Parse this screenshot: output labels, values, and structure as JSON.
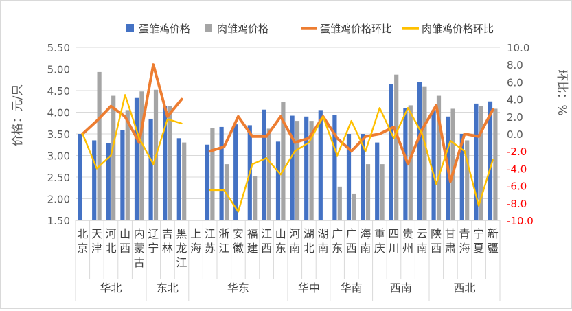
{
  "chart_data": {
    "type": "bar",
    "title": "",
    "ylabel": "价格：元/只",
    "y2label": "环比：%",
    "ylim": [
      1.5,
      5.5
    ],
    "y2lim": [
      -10.0,
      10.0
    ],
    "yticks": [
      "1.50",
      "2.00",
      "2.50",
      "3.00",
      "3.50",
      "4.00",
      "4.50",
      "5.00",
      "5.50"
    ],
    "y2ticks": [
      "-10.0",
      "-8.0",
      "-6.0",
      "-4.0",
      "-2.0",
      "0.0",
      "2.0",
      "4.0",
      "6.0",
      "8.0",
      "10.0"
    ],
    "legend_position": "top",
    "categories": [
      "北京",
      "天津",
      "河北",
      "山西",
      "内蒙古",
      "辽宁",
      "吉林",
      "黑龙江",
      "上海",
      "江苏",
      "浙江",
      "安徽",
      "福建",
      "江西",
      "山东",
      "河南",
      "湖北",
      "湖南",
      "广东",
      "广西",
      "海南",
      "重庆",
      "四川",
      "贵州",
      "云南",
      "陕西",
      "甘肃",
      "青海",
      "宁夏",
      "新疆"
    ],
    "category_lines": [
      [
        "北",
        "京"
      ],
      [
        "天",
        "津"
      ],
      [
        "河",
        "北"
      ],
      [
        "山",
        "西"
      ],
      [
        "内",
        "蒙",
        "古"
      ],
      [
        "辽",
        "宁"
      ],
      [
        "吉",
        "林"
      ],
      [
        "黑",
        "龙",
        "江"
      ],
      [
        "上",
        "海"
      ],
      [
        "江",
        "苏"
      ],
      [
        "浙",
        "江"
      ],
      [
        "安",
        "徽"
      ],
      [
        "福",
        "建"
      ],
      [
        "江",
        "西"
      ],
      [
        "山",
        "东"
      ],
      [
        "河",
        "南"
      ],
      [
        "湖",
        "北"
      ],
      [
        "湖",
        "南"
      ],
      [
        "广",
        "东"
      ],
      [
        "广",
        "西"
      ],
      [
        "海",
        "南"
      ],
      [
        "重",
        "庆"
      ],
      [
        "四",
        "川"
      ],
      [
        "贵",
        "州"
      ],
      [
        "云",
        "南"
      ],
      [
        "陕",
        "西"
      ],
      [
        "甘",
        "肃"
      ],
      [
        "青",
        "海"
      ],
      [
        "宁",
        "夏"
      ],
      [
        "新",
        "疆"
      ]
    ],
    "regions": [
      {
        "name": "华北",
        "start": 0,
        "count": 5
      },
      {
        "name": "东北",
        "start": 5,
        "count": 3
      },
      {
        "name": "华东",
        "start": 8,
        "count": 7
      },
      {
        "name": "华中",
        "start": 15,
        "count": 3
      },
      {
        "name": "华南",
        "start": 18,
        "count": 3
      },
      {
        "name": "西南",
        "start": 21,
        "count": 4
      },
      {
        "name": "西北",
        "start": 25,
        "count": 5
      }
    ],
    "series": [
      {
        "name": "蛋雏鸡价格",
        "kind": "bar",
        "axis": "left",
        "color": "#4472c4",
        "values": [
          3.5,
          3.35,
          3.28,
          3.58,
          4.33,
          3.85,
          4.15,
          3.4,
          null,
          3.25,
          3.66,
          3.72,
          3.7,
          4.06,
          3.32,
          3.92,
          3.9,
          4.05,
          3.93,
          3.5,
          3.5,
          3.3,
          4.65,
          4.1,
          4.7,
          4.05,
          3.9,
          3.5,
          4.2,
          4.25
        ]
      },
      {
        "name": "肉雏鸡价格",
        "kind": "bar",
        "axis": "left",
        "color": "#a5a5a5",
        "values": [
          null,
          4.93,
          4.38,
          4.05,
          4.48,
          4.52,
          4.15,
          3.3,
          null,
          3.63,
          2.8,
          null,
          2.52,
          3.62,
          4.23,
          3.8,
          3.8,
          null,
          2.28,
          2.12,
          2.8,
          2.8,
          4.87,
          4.16,
          4.6,
          4.38,
          4.08,
          3.35,
          4.15,
          4.08
        ]
      },
      {
        "name": "蛋雏鸡价格环比",
        "kind": "line",
        "axis": "right",
        "color": "#ed7d31",
        "values": [
          0.0,
          1.5,
          3.2,
          2.0,
          -1.0,
          8.0,
          2.0,
          4.0,
          null,
          -2.0,
          -1.5,
          2.0,
          -0.3,
          -0.3,
          2.0,
          -1.0,
          -0.5,
          2.0,
          -0.5,
          -2.0,
          -0.3,
          0.0,
          0.8,
          -3.5,
          0.5,
          3.3,
          -5.5,
          0.0,
          -0.3,
          2.8
        ]
      },
      {
        "name": "肉雏鸡价格环比",
        "kind": "line",
        "axis": "right",
        "color": "#ffc000",
        "values": [
          0.0,
          -4.0,
          -2.5,
          4.5,
          -0.5,
          -3.5,
          1.7,
          1.2,
          null,
          -6.5,
          -6.5,
          -9.0,
          -3.5,
          -2.8,
          -4.7,
          -2.0,
          -1.0,
          2.0,
          -2.5,
          1.5,
          -2.0,
          3.0,
          -0.5,
          3.0,
          0.0,
          -5.8,
          -0.8,
          -2.0,
          -8.3,
          -3.0
        ]
      }
    ]
  }
}
